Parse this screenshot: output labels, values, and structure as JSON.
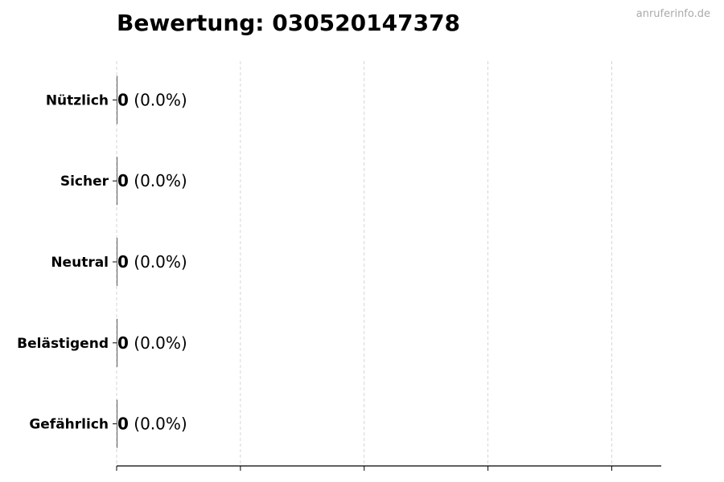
{
  "watermark": "anruferinfo.de",
  "chart_data": {
    "type": "bar",
    "orientation": "horizontal",
    "title": "Bewertung: 030520147378",
    "categories": [
      "Nützlich",
      "Sicher",
      "Neutral",
      "Belästigend",
      "Gefährlich"
    ],
    "values": [
      0,
      0,
      0,
      0,
      0
    ],
    "labels": [
      {
        "count": "0",
        "percent": "(0.0%)"
      },
      {
        "count": "0",
        "percent": "(0.0%)"
      },
      {
        "count": "0",
        "percent": "(0.0%)"
      },
      {
        "count": "0",
        "percent": "(0.0%)"
      },
      {
        "count": "0",
        "percent": "(0.0%)"
      }
    ],
    "xlim": [
      0,
      1.1
    ],
    "xticks": [
      0,
      0.25,
      0.5,
      0.75,
      1.0
    ],
    "xtick_labels_shown": false,
    "grid": "x-dashed",
    "grid_color": "#cccccc",
    "bar_color": "#333333",
    "xlabel": "",
    "ylabel": ""
  }
}
